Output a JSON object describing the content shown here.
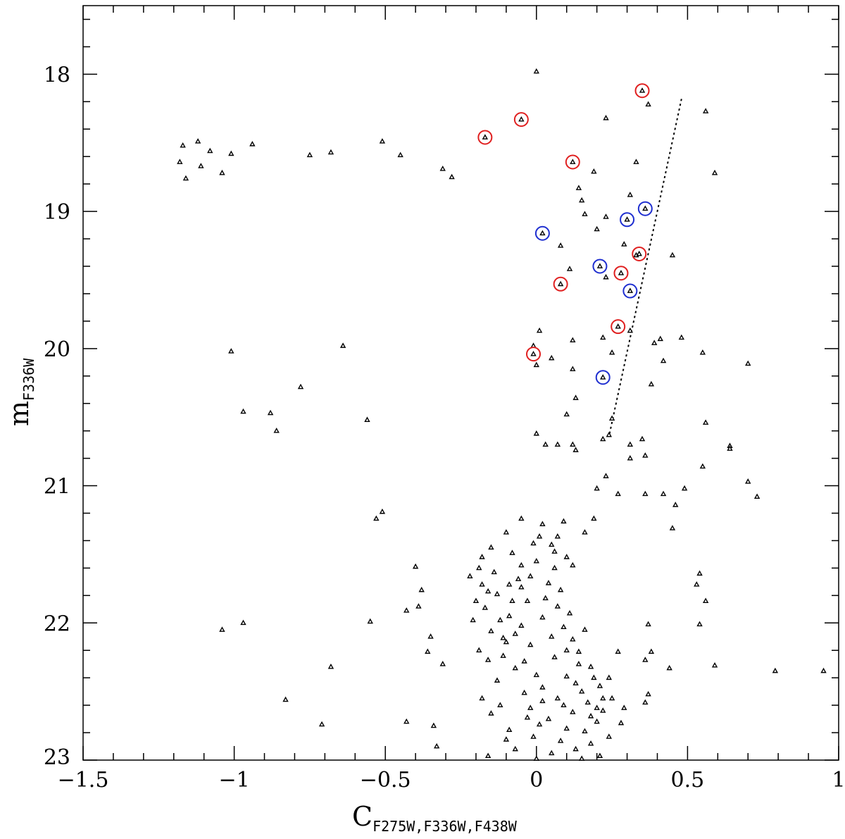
{
  "chart_data": {
    "type": "scatter",
    "title": "",
    "xlabel": {
      "main": "C",
      "sub": "F275W,F336W,F438W"
    },
    "ylabel": {
      "main": "m",
      "sub": "F336W"
    },
    "xlim": [
      -1.5,
      1.0
    ],
    "ylim": [
      23.0,
      17.5
    ],
    "y_inverted": true,
    "grid": false,
    "x_ticks": [
      -1.5,
      -1.0,
      -0.5,
      0.0,
      0.5,
      1.0
    ],
    "x_tick_labels": [
      "−1.5",
      "−1",
      "−0.5",
      "0",
      "0.5",
      "1"
    ],
    "y_ticks": [
      18,
      19,
      20,
      21,
      22,
      23
    ],
    "y_tick_labels": [
      "18",
      "19",
      "20",
      "21",
      "22",
      "23"
    ],
    "marker": "triangle",
    "marker_color": "#000000",
    "series": [
      {
        "points": [
          [
            0.0,
            17.98
          ],
          [
            0.37,
            18.22
          ],
          [
            0.56,
            18.27
          ],
          [
            0.23,
            18.32
          ],
          [
            0.59,
            18.72
          ],
          [
            0.33,
            18.64
          ],
          [
            0.19,
            18.71
          ],
          [
            -1.17,
            18.52
          ],
          [
            -1.12,
            18.49
          ],
          [
            -1.08,
            18.56
          ],
          [
            -1.01,
            18.58
          ],
          [
            -0.94,
            18.51
          ],
          [
            -1.18,
            18.64
          ],
          [
            -1.11,
            18.67
          ],
          [
            -1.04,
            18.72
          ],
          [
            -1.16,
            18.76
          ],
          [
            -0.75,
            18.59
          ],
          [
            -0.68,
            18.57
          ],
          [
            -0.51,
            18.49
          ],
          [
            -0.45,
            18.59
          ],
          [
            -0.31,
            18.69
          ],
          [
            -0.28,
            18.75
          ],
          [
            0.14,
            18.83
          ],
          [
            0.15,
            18.92
          ],
          [
            0.31,
            18.88
          ],
          [
            0.16,
            19.02
          ],
          [
            0.23,
            19.04
          ],
          [
            0.2,
            19.13
          ],
          [
            0.08,
            19.25
          ],
          [
            0.11,
            19.42
          ],
          [
            0.23,
            19.48
          ],
          [
            0.29,
            19.24
          ],
          [
            0.33,
            19.32
          ],
          [
            0.45,
            19.32
          ],
          [
            0.01,
            19.87
          ],
          [
            0.0,
            20.12
          ],
          [
            -0.01,
            19.98
          ],
          [
            0.12,
            19.94
          ],
          [
            0.22,
            19.92
          ],
          [
            0.25,
            20.03
          ],
          [
            0.12,
            20.15
          ],
          [
            0.05,
            20.07
          ],
          [
            0.31,
            19.87
          ],
          [
            0.39,
            19.96
          ],
          [
            0.41,
            19.93
          ],
          [
            0.48,
            19.92
          ],
          [
            0.55,
            20.03
          ],
          [
            0.7,
            20.11
          ],
          [
            0.42,
            20.09
          ],
          [
            0.38,
            20.26
          ],
          [
            -0.56,
            20.52
          ],
          [
            -0.78,
            20.28
          ],
          [
            -0.97,
            20.46
          ],
          [
            -0.88,
            20.47
          ],
          [
            -0.86,
            20.6
          ],
          [
            -1.01,
            20.02
          ],
          [
            -0.64,
            19.98
          ],
          [
            0.13,
            20.36
          ],
          [
            0.25,
            20.51
          ],
          [
            0.1,
            20.48
          ],
          [
            0.56,
            20.54
          ],
          [
            0.0,
            20.62
          ],
          [
            0.07,
            20.7
          ],
          [
            0.03,
            20.7
          ],
          [
            0.12,
            20.7
          ],
          [
            0.13,
            20.74
          ],
          [
            0.22,
            20.66
          ],
          [
            0.24,
            20.63
          ],
          [
            0.31,
            20.7
          ],
          [
            0.35,
            20.66
          ],
          [
            0.36,
            20.78
          ],
          [
            0.31,
            20.8
          ],
          [
            0.55,
            20.86
          ],
          [
            0.64,
            20.71
          ],
          [
            0.64,
            20.73
          ],
          [
            0.7,
            20.97
          ],
          [
            0.73,
            21.08
          ],
          [
            0.49,
            21.02
          ],
          [
            0.46,
            21.14
          ],
          [
            0.42,
            21.06
          ],
          [
            0.36,
            21.06
          ],
          [
            0.09,
            21.26
          ],
          [
            0.07,
            21.37
          ],
          [
            0.2,
            21.02
          ],
          [
            0.23,
            20.93
          ],
          [
            0.27,
            21.06
          ],
          [
            0.19,
            21.24
          ],
          [
            0.16,
            21.34
          ],
          [
            0.45,
            21.31
          ],
          [
            -0.53,
            21.24
          ],
          [
            -0.51,
            21.19
          ],
          [
            -0.4,
            21.59
          ],
          [
            -0.43,
            21.91
          ],
          [
            -0.38,
            21.76
          ],
          [
            -0.39,
            21.88
          ],
          [
            -0.55,
            21.99
          ],
          [
            -0.35,
            22.1
          ],
          [
            -0.36,
            22.21
          ],
          [
            -0.31,
            22.3
          ],
          [
            -1.04,
            22.05
          ],
          [
            -0.97,
            22.0
          ],
          [
            -0.68,
            22.32
          ],
          [
            -0.83,
            22.56
          ],
          [
            -0.71,
            22.74
          ],
          [
            -0.43,
            22.72
          ],
          [
            -0.34,
            22.75
          ],
          [
            -0.33,
            22.9
          ],
          [
            0.53,
            21.72
          ],
          [
            0.54,
            21.64
          ],
          [
            0.56,
            21.84
          ],
          [
            0.54,
            22.01
          ],
          [
            0.59,
            22.31
          ],
          [
            0.79,
            22.35
          ],
          [
            0.95,
            22.35
          ],
          [
            0.37,
            22.01
          ],
          [
            0.38,
            22.21
          ],
          [
            0.36,
            22.27
          ],
          [
            0.44,
            22.33
          ],
          [
            0.37,
            22.52
          ],
          [
            0.36,
            22.58
          ],
          [
            0.24,
            22.4
          ],
          [
            0.27,
            22.21
          ],
          [
            0.29,
            22.62
          ],
          [
            0.28,
            22.73
          ],
          [
            -0.18,
            21.52
          ],
          [
            -0.19,
            21.6
          ],
          [
            -0.15,
            21.45
          ],
          [
            -0.1,
            21.34
          ],
          [
            -0.05,
            21.24
          ],
          [
            0.02,
            21.28
          ],
          [
            -0.03,
            21.84
          ],
          [
            -0.05,
            21.74
          ],
          [
            0.01,
            21.37
          ],
          [
            0.05,
            21.43
          ]
        ]
      },
      {
        "points": [
          [
            -0.06,
            21.68
          ],
          [
            -0.13,
            21.79
          ],
          [
            -0.09,
            21.95
          ],
          [
            -0.15,
            22.06
          ],
          [
            -0.11,
            22.24
          ],
          [
            -0.02,
            22.16
          ],
          [
            -0.07,
            22.33
          ],
          [
            -0.13,
            22.42
          ],
          [
            -0.04,
            22.51
          ],
          [
            0.02,
            22.47
          ],
          [
            0.1,
            22.39
          ],
          [
            0.06,
            22.25
          ],
          [
            0.14,
            22.21
          ],
          [
            0.18,
            22.32
          ],
          [
            0.21,
            22.46
          ],
          [
            0.17,
            22.58
          ],
          [
            0.12,
            22.65
          ],
          [
            0.04,
            22.7
          ],
          [
            -0.01,
            22.83
          ],
          [
            -0.09,
            22.78
          ],
          [
            -0.15,
            22.66
          ],
          [
            -0.18,
            22.55
          ],
          [
            0.08,
            22.86
          ],
          [
            0.16,
            22.79
          ],
          [
            0.2,
            22.72
          ],
          [
            0.24,
            22.83
          ],
          [
            0.13,
            22.92
          ],
          [
            0.05,
            22.95
          ],
          [
            -0.07,
            22.92
          ],
          [
            -0.02,
            22.62
          ],
          [
            0.07,
            22.55
          ],
          [
            0.0,
            22.38
          ],
          [
            -0.1,
            22.14
          ],
          [
            -0.17,
            21.89
          ],
          [
            -0.14,
            21.63
          ],
          [
            -0.08,
            21.49
          ],
          [
            0.0,
            21.55
          ],
          [
            0.04,
            21.71
          ],
          [
            0.07,
            21.88
          ],
          [
            0.09,
            22.03
          ],
          [
            0.12,
            22.12
          ],
          [
            0.16,
            22.05
          ],
          [
            0.11,
            21.93
          ],
          [
            0.02,
            21.96
          ],
          [
            -0.05,
            22.02
          ],
          [
            -0.11,
            22.11
          ],
          [
            -0.16,
            22.27
          ],
          [
            -0.12,
            22.6
          ],
          [
            0.01,
            22.74
          ],
          [
            0.22,
            22.64
          ],
          [
            0.25,
            22.55
          ],
          [
            0.19,
            22.4
          ],
          [
            0.15,
            22.5
          ],
          [
            0.09,
            22.6
          ],
          [
            -0.04,
            22.28
          ],
          [
            -0.19,
            22.2
          ],
          [
            -0.21,
            21.98
          ],
          [
            -0.18,
            21.72
          ],
          [
            -0.05,
            21.58
          ],
          [
            0.06,
            21.6
          ],
          [
            0.08,
            21.76
          ],
          [
            0.03,
            21.82
          ],
          [
            -0.08,
            21.84
          ],
          [
            -0.12,
            21.98
          ],
          [
            -0.07,
            22.08
          ],
          [
            0.05,
            22.1
          ],
          [
            0.1,
            22.2
          ],
          [
            0.14,
            22.3
          ],
          [
            0.13,
            22.44
          ],
          [
            0.02,
            22.57
          ],
          [
            -0.03,
            22.69
          ],
          [
            0.1,
            22.77
          ],
          [
            0.18,
            22.88
          ],
          [
            0.21,
            22.97
          ],
          [
            -0.1,
            22.85
          ],
          [
            -0.16,
            22.97
          ],
          [
            0.0,
            22.99
          ],
          [
            0.15,
            22.99
          ],
          [
            0.22,
            22.55
          ],
          [
            0.2,
            22.62
          ],
          [
            0.18,
            22.68
          ],
          [
            -0.2,
            21.84
          ],
          [
            -0.22,
            21.66
          ],
          [
            -0.01,
            21.42
          ],
          [
            0.06,
            21.48
          ],
          [
            0.1,
            21.52
          ],
          [
            0.12,
            21.58
          ],
          [
            -0.02,
            21.66
          ],
          [
            -0.09,
            21.72
          ],
          [
            -0.16,
            21.77
          ]
        ]
      }
    ],
    "circled_red": [
      [
        -0.17,
        18.46
      ],
      [
        -0.05,
        18.33
      ],
      [
        0.35,
        18.12
      ],
      [
        0.12,
        18.64
      ],
      [
        0.34,
        19.31
      ],
      [
        0.28,
        19.45
      ],
      [
        0.08,
        19.53
      ],
      [
        0.27,
        19.84
      ],
      [
        -0.01,
        20.04
      ]
    ],
    "circled_blue": [
      [
        0.02,
        19.16
      ],
      [
        0.3,
        19.06
      ],
      [
        0.36,
        18.98
      ],
      [
        0.21,
        19.4
      ],
      [
        0.31,
        19.58
      ],
      [
        0.22,
        20.21
      ]
    ],
    "circle_colors": {
      "red": "#e02020",
      "blue": "#1f2fd0"
    },
    "dashed_line": [
      [
        0.48,
        18.18
      ],
      [
        0.24,
        20.64
      ]
    ]
  }
}
